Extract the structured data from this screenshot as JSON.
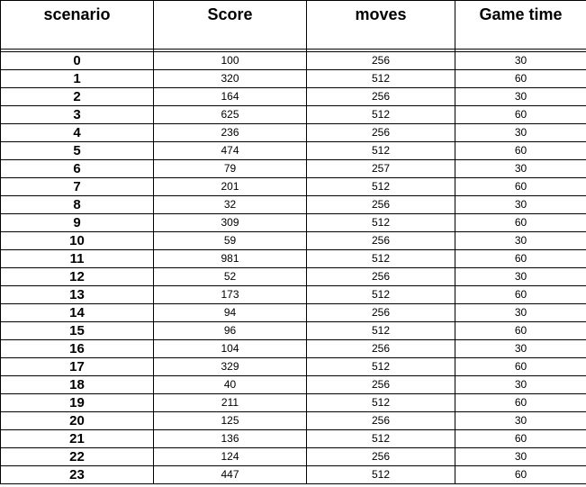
{
  "table": {
    "headers": [
      "scenario",
      "Score",
      "moves",
      "Game time"
    ],
    "rows": [
      [
        "0",
        "100",
        "256",
        "30"
      ],
      [
        "1",
        "320",
        "512",
        "60"
      ],
      [
        "2",
        "164",
        "256",
        "30"
      ],
      [
        "3",
        "625",
        "512",
        "60"
      ],
      [
        "4",
        "236",
        "256",
        "30"
      ],
      [
        "5",
        "474",
        "512",
        "60"
      ],
      [
        "6",
        "79",
        "257",
        "30"
      ],
      [
        "7",
        "201",
        "512",
        "60"
      ],
      [
        "8",
        "32",
        "256",
        "30"
      ],
      [
        "9",
        "309",
        "512",
        "60"
      ],
      [
        "10",
        "59",
        "256",
        "30"
      ],
      [
        "11",
        "981",
        "512",
        "60"
      ],
      [
        "12",
        "52",
        "256",
        "30"
      ],
      [
        "13",
        "173",
        "512",
        "60"
      ],
      [
        "14",
        "94",
        "256",
        "30"
      ],
      [
        "15",
        "96",
        "512",
        "60"
      ],
      [
        "16",
        "104",
        "256",
        "30"
      ],
      [
        "17",
        "329",
        "512",
        "60"
      ],
      [
        "18",
        "40",
        "256",
        "30"
      ],
      [
        "19",
        "211",
        "512",
        "60"
      ],
      [
        "20",
        "125",
        "256",
        "30"
      ],
      [
        "21",
        "136",
        "512",
        "60"
      ],
      [
        "22",
        "124",
        "256",
        "30"
      ],
      [
        "23",
        "447",
        "512",
        "60"
      ]
    ]
  }
}
